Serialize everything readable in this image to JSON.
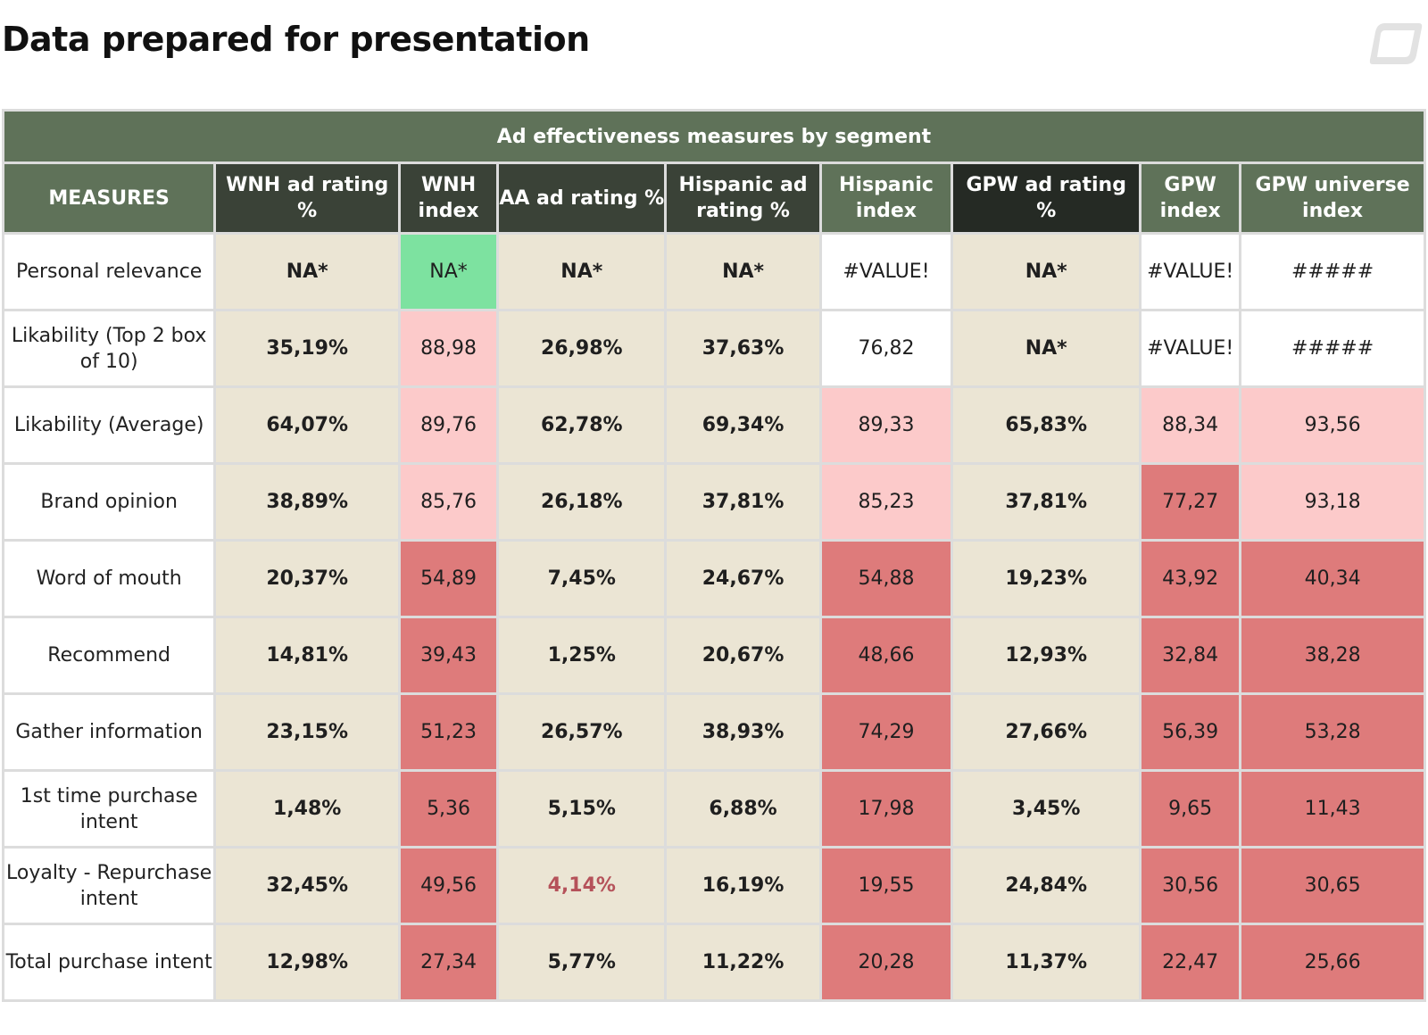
{
  "page": {
    "title": "Data prepared for presentation"
  },
  "table": {
    "caption": "Ad effectiveness measures by segment",
    "headers": [
      "MEASURES",
      "WNH ad rating %",
      "WNH index",
      "AA ad rating %",
      "Hispanic ad rating %",
      "Hispanic index",
      "GPW ad rating %",
      "GPW index",
      "GPW universe index"
    ],
    "rows": [
      {
        "label": "Personal relevance",
        "cells": [
          "NA*",
          "NA*",
          "NA*",
          "NA*",
          "#VALUE!",
          "NA*",
          "#VALUE!",
          "#####"
        ]
      },
      {
        "label": "Likability (Top 2 box of 10)",
        "cells": [
          "35,19%",
          "88,98",
          "26,98%",
          "37,63%",
          "76,82",
          "NA*",
          "#VALUE!",
          "#####"
        ]
      },
      {
        "label": "Likability (Average)",
        "cells": [
          "64,07%",
          "89,76",
          "62,78%",
          "69,34%",
          "89,33",
          "65,83%",
          "88,34",
          "93,56"
        ]
      },
      {
        "label": "Brand opinion",
        "cells": [
          "38,89%",
          "85,76",
          "26,18%",
          "37,81%",
          "85,23",
          "37,81%",
          "77,27",
          "93,18"
        ]
      },
      {
        "label": "Word of mouth",
        "cells": [
          "20,37%",
          "54,89",
          "7,45%",
          "24,67%",
          "54,88",
          "19,23%",
          "43,92",
          "40,34"
        ]
      },
      {
        "label": "Recommend",
        "cells": [
          "14,81%",
          "39,43",
          "1,25%",
          "20,67%",
          "48,66",
          "12,93%",
          "32,84",
          "38,28"
        ]
      },
      {
        "label": "Gather information",
        "cells": [
          "23,15%",
          "51,23",
          "26,57%",
          "38,93%",
          "74,29",
          "27,66%",
          "56,39",
          "53,28"
        ]
      },
      {
        "label": "1st time purchase intent",
        "cells": [
          "1,48%",
          "5,36",
          "5,15%",
          "6,88%",
          "17,98",
          "3,45%",
          "9,65",
          "11,43"
        ]
      },
      {
        "label": "Loyalty - Repurchase intent",
        "cells": [
          "32,45%",
          "49,56",
          "4,14%",
          "16,19%",
          "19,55",
          "24,84%",
          "30,56",
          "30,65"
        ]
      },
      {
        "label": "Total purchase intent",
        "cells": [
          "12,98%",
          "27,34",
          "5,77%",
          "11,22%",
          "20,28",
          "11,37%",
          "22,47",
          "25,66"
        ]
      }
    ],
    "cell_styles": [
      [
        "beige",
        "green",
        "beige",
        "beige",
        "white",
        "beige",
        "white",
        "white"
      ],
      [
        "beige",
        "pink",
        "beige",
        "beige",
        "white",
        "beige",
        "white",
        "white"
      ],
      [
        "beige",
        "pink",
        "beige",
        "beige",
        "pink",
        "beige",
        "pink",
        "pink"
      ],
      [
        "beige",
        "pink",
        "beige",
        "beige",
        "pink",
        "beige",
        "red",
        "pink"
      ],
      [
        "beige",
        "red",
        "beige",
        "beige",
        "red",
        "beige",
        "red",
        "red"
      ],
      [
        "beige",
        "red",
        "beige",
        "beige",
        "red",
        "beige",
        "red",
        "red"
      ],
      [
        "beige",
        "red",
        "beige",
        "beige",
        "red",
        "beige",
        "red",
        "red"
      ],
      [
        "beige",
        "red",
        "beige",
        "beige",
        "red",
        "beige",
        "red",
        "red"
      ],
      [
        "beige",
        "red",
        "beige redtext",
        "beige",
        "red",
        "beige",
        "red",
        "red"
      ],
      [
        "beige",
        "red",
        "beige",
        "beige",
        "red",
        "beige",
        "red",
        "red"
      ]
    ]
  },
  "colors": {
    "header_green": "#5f7259",
    "header_dark": "#3a4237",
    "beige": "#ebe5d4",
    "light_green": "#7de2a0",
    "pink": "#fccaca",
    "red": "#de7b7b"
  }
}
